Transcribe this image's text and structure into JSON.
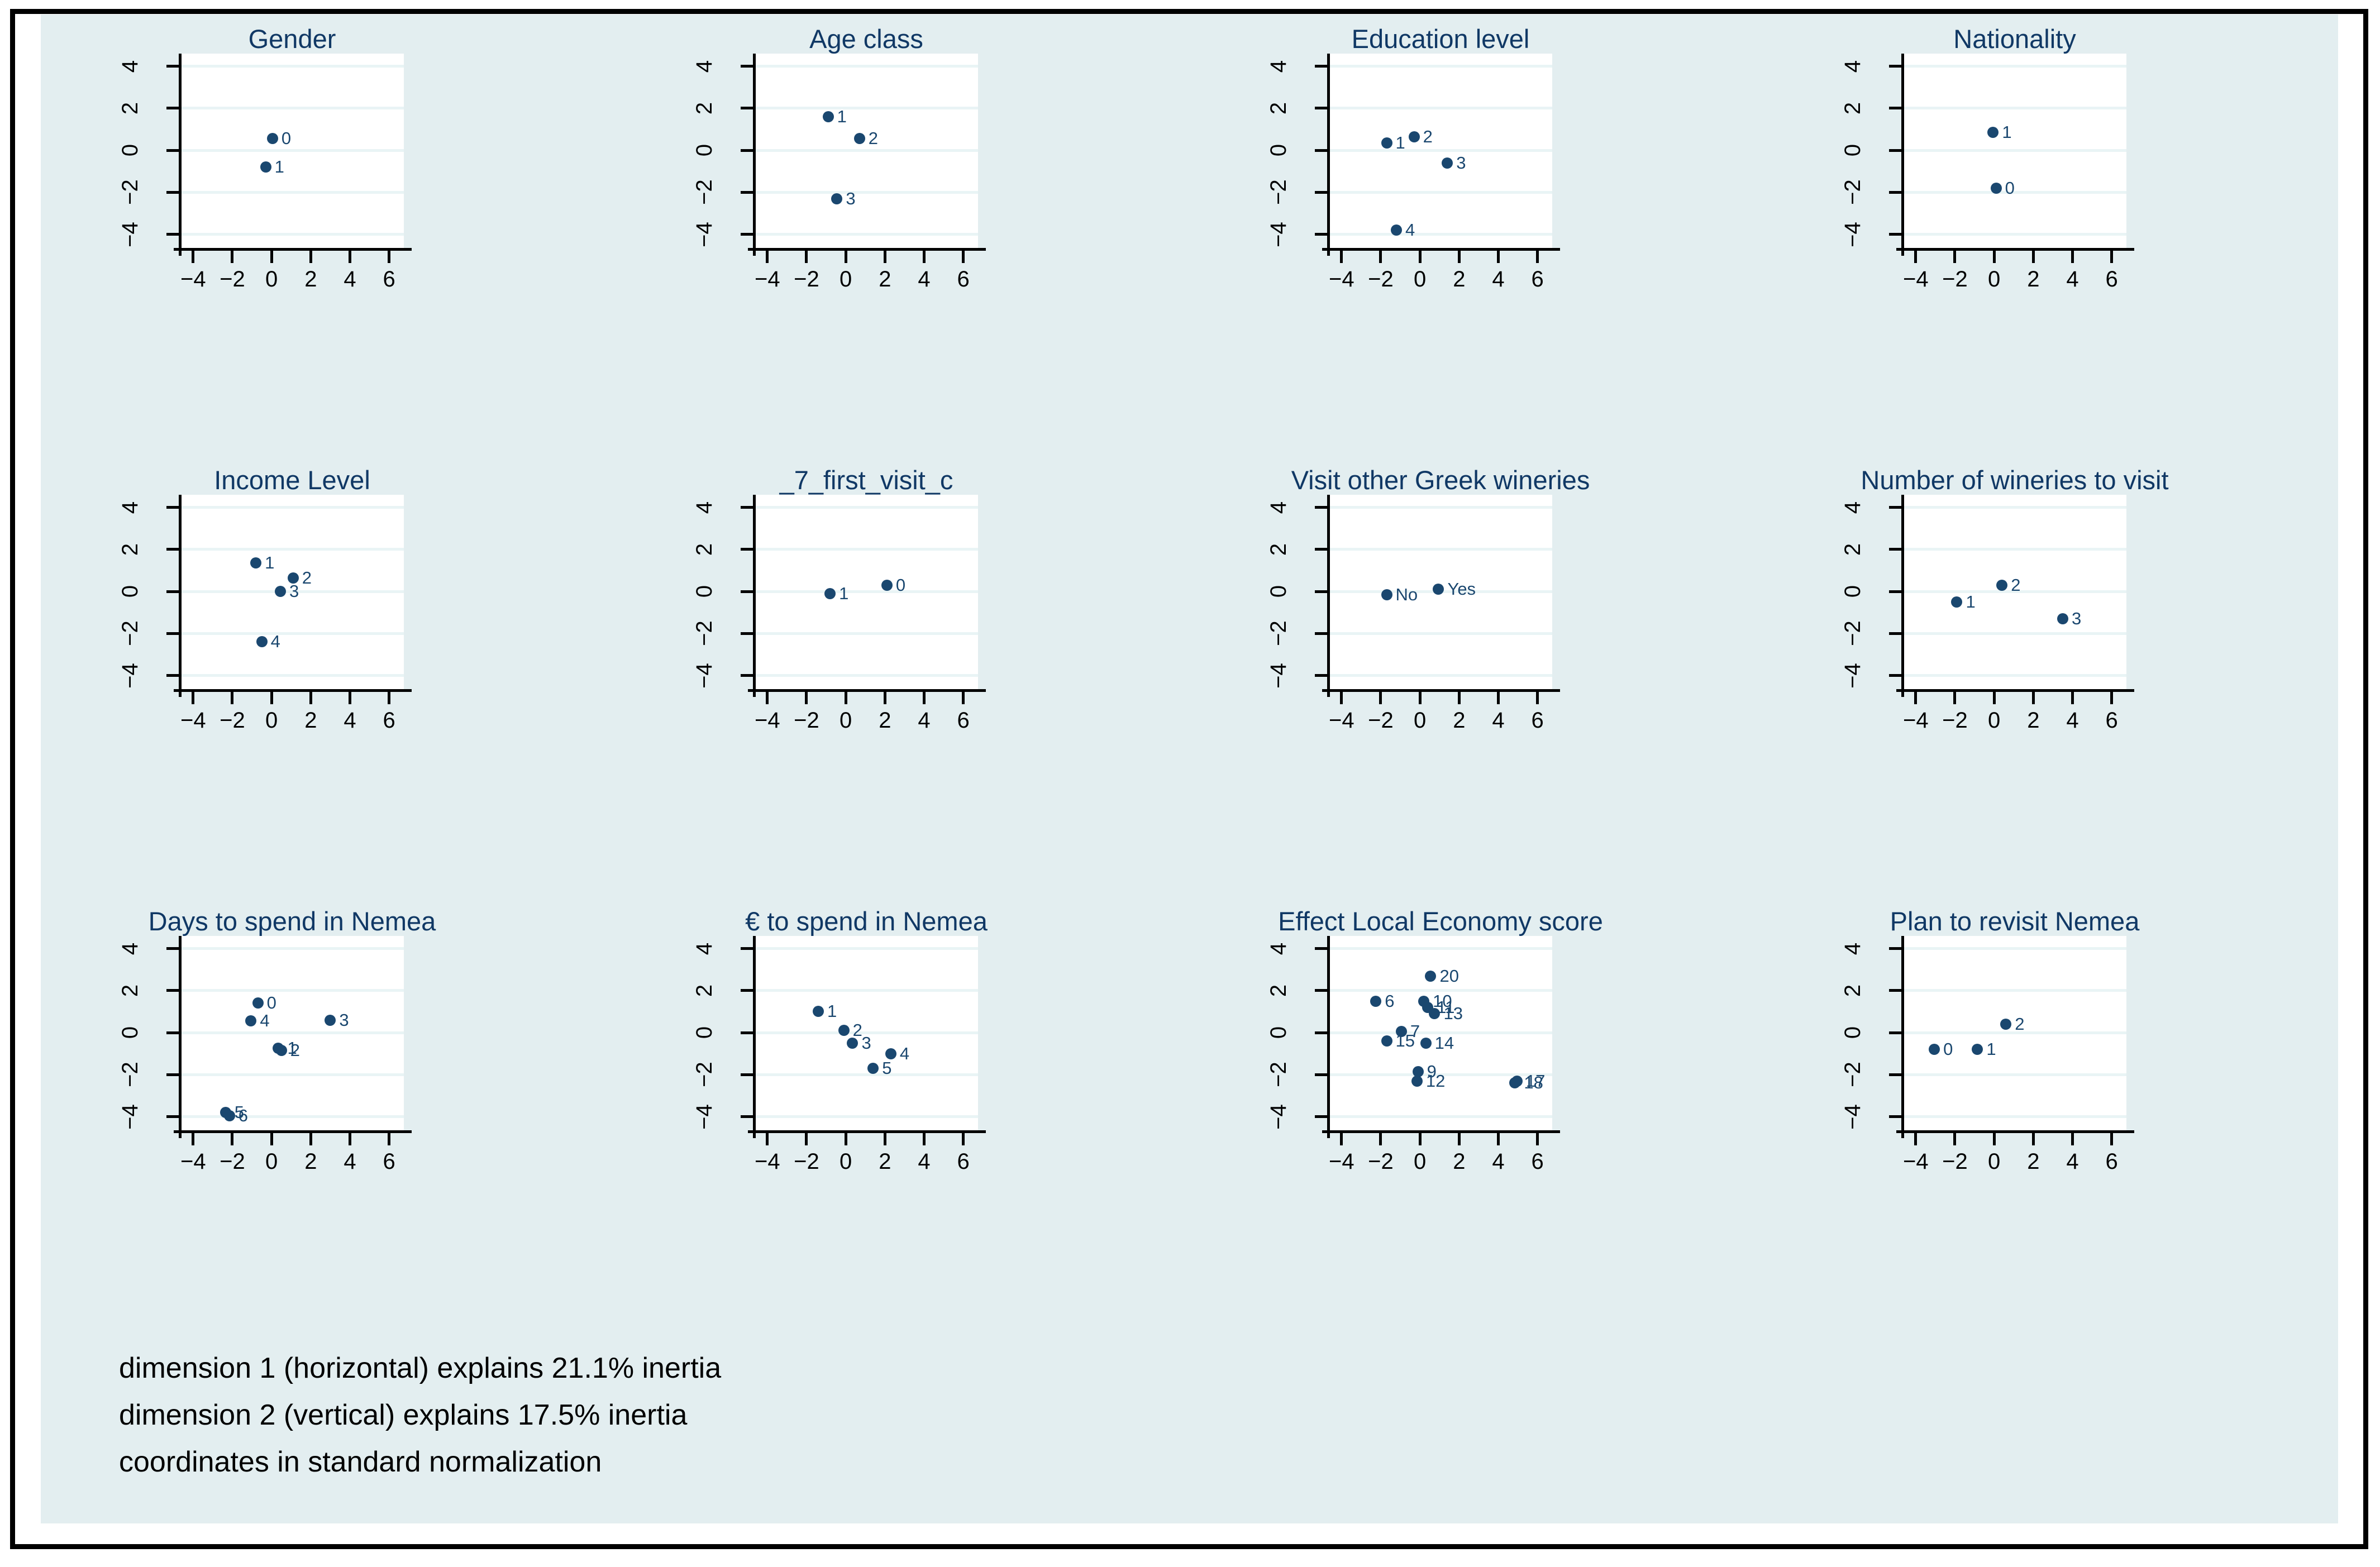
{
  "note": {
    "lines": [
      "dimension 1 (horizontal) explains 21.1% inertia",
      "dimension 2 (vertical) explains 17.5% inertia",
      "coordinates in standard normalization"
    ]
  },
  "colors": {
    "panel_bg": "#e3eef0",
    "plot_bg": "#ffffff",
    "gridline": "#e9f4f5",
    "marker": "#1a476f",
    "marker_label": "#1a476f",
    "title_text": "#103865",
    "axis": "#000000",
    "tick_label": "#000000",
    "note_text": "#000000",
    "outer_border": "#000000"
  },
  "axes": {
    "x_ticks": [
      -4,
      -2,
      0,
      2,
      4,
      6
    ],
    "y_ticks": [
      -4,
      -2,
      0,
      2,
      4
    ],
    "xlim": [
      -4.65,
      6.75
    ],
    "ylim": [
      -4.7,
      4.6
    ],
    "grid": "horizontal-only",
    "legend": "none"
  },
  "chart_data": [
    {
      "type": "scatter",
      "title": "Gender",
      "xlabel": "",
      "ylabel": "",
      "points": [
        {
          "label": "0",
          "x": 0.05,
          "y": 0.55
        },
        {
          "label": "1",
          "x": -0.3,
          "y": -0.8
        }
      ]
    },
    {
      "type": "scatter",
      "title": "Age class",
      "xlabel": "",
      "ylabel": "",
      "points": [
        {
          "label": "1",
          "x": -0.9,
          "y": 1.6
        },
        {
          "label": "2",
          "x": 0.7,
          "y": 0.55
        },
        {
          "label": "3",
          "x": -0.45,
          "y": -2.3
        }
      ]
    },
    {
      "type": "scatter",
      "title": "Education level",
      "xlabel": "",
      "ylabel": "",
      "points": [
        {
          "label": "1",
          "x": -1.7,
          "y": 0.35
        },
        {
          "label": "2",
          "x": -0.3,
          "y": 0.65
        },
        {
          "label": "3",
          "x": 1.4,
          "y": -0.6
        },
        {
          "label": "4",
          "x": -1.2,
          "y": -3.8
        }
      ]
    },
    {
      "type": "scatter",
      "title": "Nationality",
      "xlabel": "",
      "ylabel": "",
      "points": [
        {
          "label": "1",
          "x": -0.05,
          "y": 0.85
        },
        {
          "label": "0",
          "x": 0.1,
          "y": -1.8
        }
      ]
    },
    {
      "type": "scatter",
      "title": "Income Level",
      "xlabel": "",
      "ylabel": "",
      "points": [
        {
          "label": "1",
          "x": -0.8,
          "y": 1.35
        },
        {
          "label": "2",
          "x": 1.1,
          "y": 0.65
        },
        {
          "label": "3",
          "x": 0.45,
          "y": 0
        },
        {
          "label": "4",
          "x": -0.5,
          "y": -2.4
        }
      ]
    },
    {
      "type": "scatter",
      "title": "_7_first_visit_c",
      "xlabel": "",
      "ylabel": "",
      "points": [
        {
          "label": "1",
          "x": -0.8,
          "y": -0.1
        },
        {
          "label": "0",
          "x": 2.1,
          "y": 0.3
        }
      ]
    },
    {
      "type": "scatter",
      "title": "Visit other Greek wineries",
      "xlabel": "",
      "ylabel": "",
      "points": [
        {
          "label": "No",
          "x": -1.7,
          "y": -0.15
        },
        {
          "label": "Yes",
          "x": 0.95,
          "y": 0.1
        }
      ]
    },
    {
      "type": "scatter",
      "title": "Number of wineries to visit",
      "xlabel": "",
      "ylabel": "",
      "points": [
        {
          "label": "1",
          "x": -1.9,
          "y": -0.5
        },
        {
          "label": "2",
          "x": 0.4,
          "y": 0.3
        },
        {
          "label": "3",
          "x": 3.5,
          "y": -1.3
        }
      ]
    },
    {
      "type": "scatter",
      "title": "Days to spend in Nemea",
      "xlabel": "",
      "ylabel": "",
      "points": [
        {
          "label": "0",
          "x": -0.7,
          "y": 1.4
        },
        {
          "label": "4",
          "x": -1.05,
          "y": 0.55
        },
        {
          "label": "3",
          "x": 3.0,
          "y": 0.6
        },
        {
          "label": "1",
          "x": 0.35,
          "y": -0.75
        },
        {
          "label": "2",
          "x": 0.5,
          "y": -0.85
        },
        {
          "label": "5",
          "x": -2.35,
          "y": -3.8
        },
        {
          "label": "6",
          "x": -2.15,
          "y": -3.95
        }
      ]
    },
    {
      "type": "scatter",
      "title": "€ to spend in Nemea",
      "xlabel": "",
      "ylabel": "",
      "points": [
        {
          "label": "1",
          "x": -1.4,
          "y": 1.0
        },
        {
          "label": "2",
          "x": -0.1,
          "y": 0.1
        },
        {
          "label": "3",
          "x": 0.35,
          "y": -0.5
        },
        {
          "label": "4",
          "x": 2.3,
          "y": -1.0
        },
        {
          "label": "5",
          "x": 1.4,
          "y": -1.7
        }
      ]
    },
    {
      "type": "scatter",
      "title": "Effect Local Economy score",
      "xlabel": "",
      "ylabel": "",
      "points": [
        {
          "label": "20",
          "x": 0.55,
          "y": 2.7
        },
        {
          "label": "6",
          "x": -2.25,
          "y": 1.5
        },
        {
          "label": "10",
          "x": 0.2,
          "y": 1.5
        },
        {
          "label": "11",
          "x": 0.4,
          "y": 1.2
        },
        {
          "label": "13",
          "x": 0.75,
          "y": 0.9
        },
        {
          "label": "7",
          "x": -0.95,
          "y": 0.05
        },
        {
          "label": "15",
          "x": -1.7,
          "y": -0.4
        },
        {
          "label": "14",
          "x": 0.3,
          "y": -0.5
        },
        {
          "label": "9",
          "x": -0.1,
          "y": -1.85
        },
        {
          "label": "12",
          "x": -0.15,
          "y": -2.3
        },
        {
          "label": "17",
          "x": 4.95,
          "y": -2.3
        },
        {
          "label": "18",
          "x": 4.85,
          "y": -2.4
        }
      ]
    },
    {
      "type": "scatter",
      "title": "Plan to revisit Nemea",
      "xlabel": "",
      "ylabel": "",
      "points": [
        {
          "label": "2",
          "x": 0.6,
          "y": 0.4
        },
        {
          "label": "0",
          "x": -3.05,
          "y": -0.8
        },
        {
          "label": "1",
          "x": -0.85,
          "y": -0.8
        }
      ]
    }
  ]
}
